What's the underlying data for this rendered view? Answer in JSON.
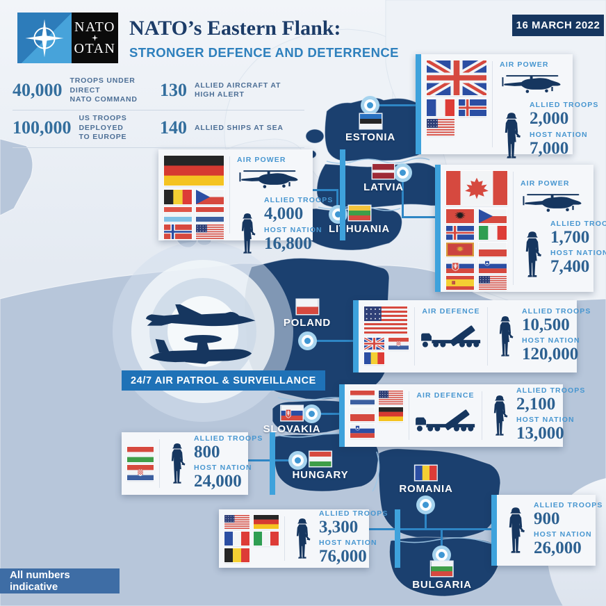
{
  "header": {
    "logo": {
      "top": "NATO",
      "bottom": "OTAN"
    },
    "title": "NATO’s Eastern Flank:",
    "subtitle": "STRONGER DEFENCE AND DETERRENCE",
    "date_badge": "16 MARCH 2022"
  },
  "stats": [
    {
      "value": "40,000",
      "lines": [
        "TROOPS UNDER DIRECT",
        "NATO COMMAND"
      ]
    },
    {
      "value": "100,000",
      "lines": [
        "US TROOPS DEPLOYED",
        "TO EUROPE"
      ]
    },
    {
      "value": "130",
      "lines": [
        "ALLIED AIRCRAFT AT",
        "HIGH ALERT"
      ]
    },
    {
      "value": "140",
      "lines": [
        "ALLIED SHIPS AT SEA",
        ""
      ]
    }
  ],
  "labels": {
    "allied": "ALLIED TROOPS",
    "host": "HOST NATION",
    "air_power": "AIR POWER",
    "air_defence": "AIR DEFENCE"
  },
  "air_patrol": {
    "banner": "24/7 AIR PATROL & SURVEILLANCE"
  },
  "footer": {
    "note": "All numbers indicative"
  },
  "map": {
    "countries": [
      {
        "id": "estonia",
        "label": "ESTONIA",
        "flag": "ee"
      },
      {
        "id": "latvia",
        "label": "LATVIA",
        "flag": "lv"
      },
      {
        "id": "lithuania",
        "label": "LITHUANIA",
        "flag": "lt"
      },
      {
        "id": "poland",
        "label": "POLAND",
        "flag": "pl"
      },
      {
        "id": "slovakia",
        "label": "SLOVAKIA",
        "flag": "sk"
      },
      {
        "id": "hungary",
        "label": "HUNGARY",
        "flag": "hu"
      },
      {
        "id": "romania",
        "label": "ROMANIA",
        "flag": "ro"
      },
      {
        "id": "bulgaria",
        "label": "BULGARIA",
        "flag": "bg"
      }
    ]
  },
  "callouts": {
    "estonia": {
      "section": "AIR POWER",
      "lead_flag": "gb",
      "flags": [
        "fr",
        "is",
        "us"
      ],
      "allied": "2,000",
      "host": "7,000"
    },
    "lithuania": {
      "section": "AIR POWER",
      "lead_flag": "de",
      "flags": [
        "be",
        "cz",
        "lu",
        "nl",
        "no",
        "us"
      ],
      "allied": "4,000",
      "host": "16,800"
    },
    "latvia": {
      "section": "AIR POWER",
      "lead_flag": "ca",
      "flags": [
        "al",
        "cz",
        "is",
        "it",
        "me",
        "pl",
        "sk",
        "si",
        "es",
        "us"
      ],
      "allied": "1,700",
      "host": "7,400"
    },
    "poland": {
      "section": "AIR DEFENCE",
      "lead_flag": "us",
      "flags": [
        "gb",
        "hr",
        "ro"
      ],
      "allied": "10,500",
      "host": "120,000"
    },
    "slovakia": {
      "section": "AIR DEFENCE",
      "flags": [
        "nl",
        "us",
        "pl",
        "de",
        "si"
      ],
      "allied": "2,100",
      "host": "13,000"
    },
    "hungary": {
      "flags": [
        "hu",
        "hr"
      ],
      "allied": "800",
      "host": "24,000"
    },
    "romania": {
      "flags": [
        "us",
        "de",
        "fr",
        "it",
        "be"
      ],
      "allied": "3,300",
      "host": "76,000"
    },
    "bulgaria": {
      "flags": [],
      "allied": "900",
      "host": "26,000"
    }
  },
  "icons": {
    "logo_compass": "nato-compass-icon",
    "air_power": "helicopter-icon",
    "air_defence": "missile-launcher-icon",
    "troops": "soldier-icon",
    "patrol": [
      "fighter-jet-icon",
      "awacs-aircraft-icon"
    ],
    "marker": "map-marker-icon"
  },
  "colors": {
    "accent_bar": "#3ea2dc",
    "navy": "#16365f",
    "map_dark": "#1b406f",
    "map_nato_land": "#b7c6da",
    "map_nonnato_land": "#eef2f7",
    "subtitle_blue": "#2e80bd",
    "banner_blue": "#1f72b7",
    "connector_blue": "#2e86c5",
    "number_blue": "#2d6191"
  }
}
